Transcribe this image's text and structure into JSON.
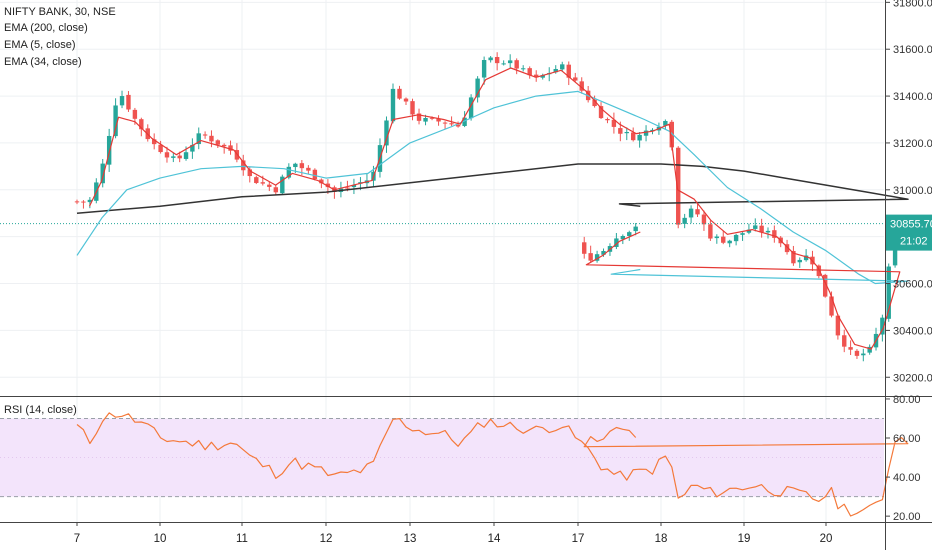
{
  "chart_data": {
    "type": "candlestick",
    "title": "NIFTY BANK, 30, NSE",
    "indicators": [
      "EMA (200, close)",
      "EMA (5, close)",
      "EMA (34, close)"
    ],
    "rsi_label": "RSI (14, close)",
    "price_ticks": [
      "31800.00",
      "31600.00",
      "31400.00",
      "31200.00",
      "31000.00",
      "30800.00",
      "30600.00",
      "30400.00",
      "30200.00"
    ],
    "price_ylim": [
      30120,
      31810
    ],
    "rsi_ticks": [
      "80.00",
      "60.00",
      "40.00",
      "20.00"
    ],
    "rsi_ylim": [
      17,
      81
    ],
    "rsi_bands": [
      70,
      30
    ],
    "date_labels": [
      {
        "label": "7",
        "x": 7
      },
      {
        "label": "10",
        "x": 10
      },
      {
        "label": "11",
        "x": 11
      },
      {
        "label": "12",
        "x": 12
      },
      {
        "label": "13",
        "x": 13
      },
      {
        "label": "14",
        "x": 14
      },
      {
        "label": "17",
        "x": 17
      },
      {
        "label": "18",
        "x": 18
      },
      {
        "label": "19",
        "x": 19
      },
      {
        "label": "20",
        "x": 20
      }
    ],
    "last_price": "30855.70",
    "countdown": "21:02",
    "colors": {
      "up": "#26a69a",
      "down": "#ef5350",
      "ema200": "#333333",
      "ema5": "#e53935",
      "ema34": "#4fc3d7",
      "rsi": "#f4793a",
      "rsi_band_fill": "#f3e4fb",
      "price_line": "#26a69a"
    },
    "anchors": {
      "close": [
        [
          6.15,
          30950
        ],
        [
          6.3,
          31090
        ],
        [
          6.5,
          31430
        ],
        [
          6.7,
          31300
        ],
        [
          6.9,
          31200
        ],
        [
          7.2,
          31120
        ],
        [
          7.5,
          31240
        ],
        [
          7.9,
          31160
        ],
        [
          8.1,
          31050
        ],
        [
          8.4,
          31000
        ],
        [
          8.6,
          31120
        ],
        [
          8.9,
          31050
        ],
        [
          9.1,
          30990
        ],
        [
          9.55,
          31050
        ],
        [
          9.8,
          31430
        ],
        [
          10.1,
          31300
        ],
        [
          10.4,
          31290
        ],
        [
          10.6,
          31270
        ],
        [
          10.9,
          31560
        ],
        [
          11.2,
          31540
        ],
        [
          11.5,
          31470
        ],
        [
          11.8,
          31530
        ],
        [
          12.1,
          31400
        ],
        [
          12.3,
          31310
        ],
        [
          12.5,
          31250
        ],
        [
          12.7,
          31220
        ],
        [
          12.9,
          31270
        ],
        [
          13.1,
          31300
        ],
        [
          13.17,
          31050
        ],
        [
          13.2,
          30860
        ],
        [
          13.4,
          30920
        ],
        [
          13.6,
          30800
        ],
        [
          13.8,
          30780
        ],
        [
          14.1,
          30840
        ],
        [
          14.4,
          30800
        ],
        [
          14.6,
          30700
        ],
        [
          14.8,
          30720
        ],
        [
          14.9,
          30640
        ],
        [
          15.05,
          30490
        ],
        [
          15.15,
          30380
        ],
        [
          15.35,
          30280
        ],
        [
          15.55,
          30320
        ],
        [
          15.7,
          30470
        ],
        [
          15.75,
          30640
        ],
        [
          15.9,
          30840
        ],
        [
          16.1,
          30700
        ],
        [
          16.3,
          30740
        ],
        [
          16.5,
          30810
        ],
        [
          16.75,
          30840
        ]
      ],
      "ema5": [
        [
          6.15,
          30930
        ],
        [
          6.3,
          31040
        ],
        [
          6.5,
          31310
        ],
        [
          6.7,
          31290
        ],
        [
          6.9,
          31220
        ],
        [
          7.2,
          31150
        ],
        [
          7.5,
          31210
        ],
        [
          7.9,
          31170
        ],
        [
          8.1,
          31080
        ],
        [
          8.4,
          31020
        ],
        [
          8.6,
          31070
        ],
        [
          8.9,
          31040
        ],
        [
          9.1,
          31000
        ],
        [
          9.55,
          31040
        ],
        [
          9.8,
          31300
        ],
        [
          10.1,
          31320
        ],
        [
          10.4,
          31300
        ],
        [
          10.6,
          31280
        ],
        [
          10.9,
          31470
        ],
        [
          11.2,
          31520
        ],
        [
          11.5,
          31480
        ],
        [
          11.8,
          31510
        ],
        [
          12.1,
          31420
        ],
        [
          12.3,
          31340
        ],
        [
          12.5,
          31280
        ],
        [
          12.7,
          31240
        ],
        [
          12.9,
          31250
        ],
        [
          13.1,
          31280
        ],
        [
          13.2,
          31000
        ],
        [
          13.4,
          30960
        ],
        [
          13.6,
          30870
        ],
        [
          13.8,
          30810
        ],
        [
          14.1,
          30830
        ],
        [
          14.4,
          30800
        ],
        [
          14.6,
          30730
        ],
        [
          14.8,
          30710
        ],
        [
          14.9,
          30670
        ],
        [
          15.05,
          30560
        ],
        [
          15.15,
          30460
        ],
        [
          15.35,
          30340
        ],
        [
          15.55,
          30320
        ],
        [
          15.7,
          30410
        ],
        [
          15.9,
          30650
        ],
        [
          16.1,
          30680
        ],
        [
          16.3,
          30720
        ],
        [
          16.5,
          30780
        ],
        [
          16.75,
          30820
        ]
      ],
      "ema34": [
        [
          6.0,
          30720
        ],
        [
          6.3,
          30880
        ],
        [
          6.6,
          31000
        ],
        [
          7.0,
          31050
        ],
        [
          7.5,
          31090
        ],
        [
          8.0,
          31100
        ],
        [
          8.5,
          31090
        ],
        [
          9.0,
          31050
        ],
        [
          9.5,
          31070
        ],
        [
          10.0,
          31200
        ],
        [
          10.5,
          31270
        ],
        [
          11.0,
          31350
        ],
        [
          11.5,
          31400
        ],
        [
          12.0,
          31420
        ],
        [
          12.4,
          31360
        ],
        [
          12.8,
          31300
        ],
        [
          13.1,
          31250
        ],
        [
          13.4,
          31150
        ],
        [
          13.8,
          31010
        ],
        [
          14.2,
          30920
        ],
        [
          14.6,
          30820
        ],
        [
          15.0,
          30740
        ],
        [
          15.4,
          30640
        ],
        [
          15.6,
          30600
        ],
        [
          16.0,
          30610
        ],
        [
          16.4,
          30640
        ],
        [
          16.75,
          30660
        ]
      ],
      "ema200": [
        [
          6.0,
          30900
        ],
        [
          7.0,
          30930
        ],
        [
          8.0,
          30970
        ],
        [
          9.0,
          30990
        ],
        [
          10.0,
          31030
        ],
        [
          11.0,
          31070
        ],
        [
          12.0,
          31110
        ],
        [
          13.0,
          31110
        ],
        [
          13.5,
          31100
        ],
        [
          14.0,
          31080
        ],
        [
          14.5,
          31050
        ],
        [
          15.0,
          31020
        ],
        [
          15.5,
          30990
        ],
        [
          16.0,
          30960
        ],
        [
          16.5,
          30940
        ],
        [
          16.75,
          30930
        ]
      ],
      "rsi": [
        [
          6.0,
          66
        ],
        [
          6.15,
          58
        ],
        [
          6.3,
          70
        ],
        [
          6.5,
          73
        ],
        [
          6.8,
          67
        ],
        [
          7.0,
          60
        ],
        [
          7.3,
          58
        ],
        [
          7.6,
          56
        ],
        [
          7.9,
          58
        ],
        [
          8.1,
          50
        ],
        [
          8.4,
          42
        ],
        [
          8.6,
          48
        ],
        [
          8.9,
          44
        ],
        [
          9.1,
          40
        ],
        [
          9.55,
          45
        ],
        [
          9.8,
          70
        ],
        [
          10.1,
          64
        ],
        [
          10.4,
          62
        ],
        [
          10.6,
          57
        ],
        [
          10.9,
          69
        ],
        [
          11.2,
          66
        ],
        [
          11.5,
          64
        ],
        [
          11.8,
          67
        ],
        [
          12.1,
          55
        ],
        [
          12.3,
          45
        ],
        [
          12.5,
          40
        ],
        [
          12.7,
          42
        ],
        [
          12.9,
          44
        ],
        [
          13.1,
          52
        ],
        [
          13.15,
          40
        ],
        [
          13.2,
          28
        ],
        [
          13.4,
          36
        ],
        [
          13.6,
          32
        ],
        [
          13.8,
          33
        ],
        [
          14.1,
          36
        ],
        [
          14.4,
          33
        ],
        [
          14.6,
          32
        ],
        [
          14.8,
          30
        ],
        [
          14.9,
          28
        ],
        [
          15.05,
          33
        ],
        [
          15.15,
          26
        ],
        [
          15.35,
          22
        ],
        [
          15.55,
          23
        ],
        [
          15.7,
          30
        ],
        [
          15.8,
          55
        ],
        [
          15.9,
          62
        ],
        [
          16.1,
          57
        ],
        [
          16.3,
          62
        ],
        [
          16.5,
          64
        ],
        [
          16.75,
          60
        ]
      ]
    }
  }
}
